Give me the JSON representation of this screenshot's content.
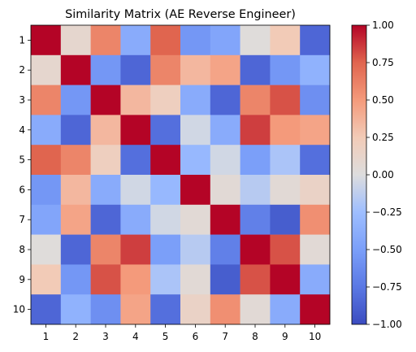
{
  "chart_data": {
    "type": "heatmap",
    "title": "Similarity Matrix (AE Reverse Engineer)",
    "x_tick_labels": [
      "1",
      "2",
      "3",
      "4",
      "5",
      "6",
      "7",
      "8",
      "9",
      "10"
    ],
    "y_tick_labels": [
      "1",
      "2",
      "3",
      "4",
      "5",
      "6",
      "7",
      "8",
      "9",
      "10"
    ],
    "colormap": "coolwarm",
    "vmin": -1.0,
    "vmax": 1.0,
    "colorbar_ticks": [
      1.0,
      0.75,
      0.5,
      0.25,
      0.0,
      -0.25,
      -0.5,
      -0.75,
      -1.0
    ],
    "colorbar_tick_labels": [
      "1.00",
      "0.75",
      "0.50",
      "0.25",
      "0.00",
      "−0.25",
      "−0.50",
      "−0.75",
      "−1.00"
    ],
    "matrix": [
      [
        1.0,
        0.1,
        0.6,
        -0.4,
        0.75,
        -0.55,
        -0.45,
        0.02,
        0.25,
        -0.85
      ],
      [
        0.1,
        1.0,
        -0.55,
        -0.85,
        0.6,
        0.35,
        0.45,
        -0.85,
        -0.55,
        -0.35
      ],
      [
        0.6,
        -0.55,
        1.0,
        0.35,
        0.2,
        -0.4,
        -0.85,
        0.6,
        0.8,
        -0.6
      ],
      [
        -0.4,
        -0.85,
        0.35,
        1.0,
        -0.8,
        -0.05,
        -0.4,
        0.85,
        0.5,
        0.45
      ],
      [
        0.75,
        0.6,
        0.2,
        -0.8,
        1.0,
        -0.3,
        -0.05,
        -0.5,
        -0.2,
        -0.8
      ],
      [
        -0.55,
        0.35,
        -0.4,
        -0.05,
        -0.3,
        1.0,
        0.05,
        -0.15,
        0.05,
        0.15
      ],
      [
        -0.45,
        0.45,
        -0.85,
        -0.4,
        -0.05,
        0.05,
        1.0,
        -0.7,
        -0.9,
        0.55
      ],
      [
        0.02,
        -0.85,
        0.6,
        0.85,
        -0.5,
        -0.15,
        -0.7,
        1.0,
        0.8,
        0.05
      ],
      [
        0.25,
        -0.55,
        0.8,
        0.5,
        -0.2,
        0.05,
        -0.9,
        0.8,
        1.0,
        -0.4
      ],
      [
        -0.85,
        -0.35,
        -0.6,
        0.45,
        -0.8,
        0.15,
        0.55,
        0.05,
        -0.4,
        1.0
      ]
    ]
  }
}
